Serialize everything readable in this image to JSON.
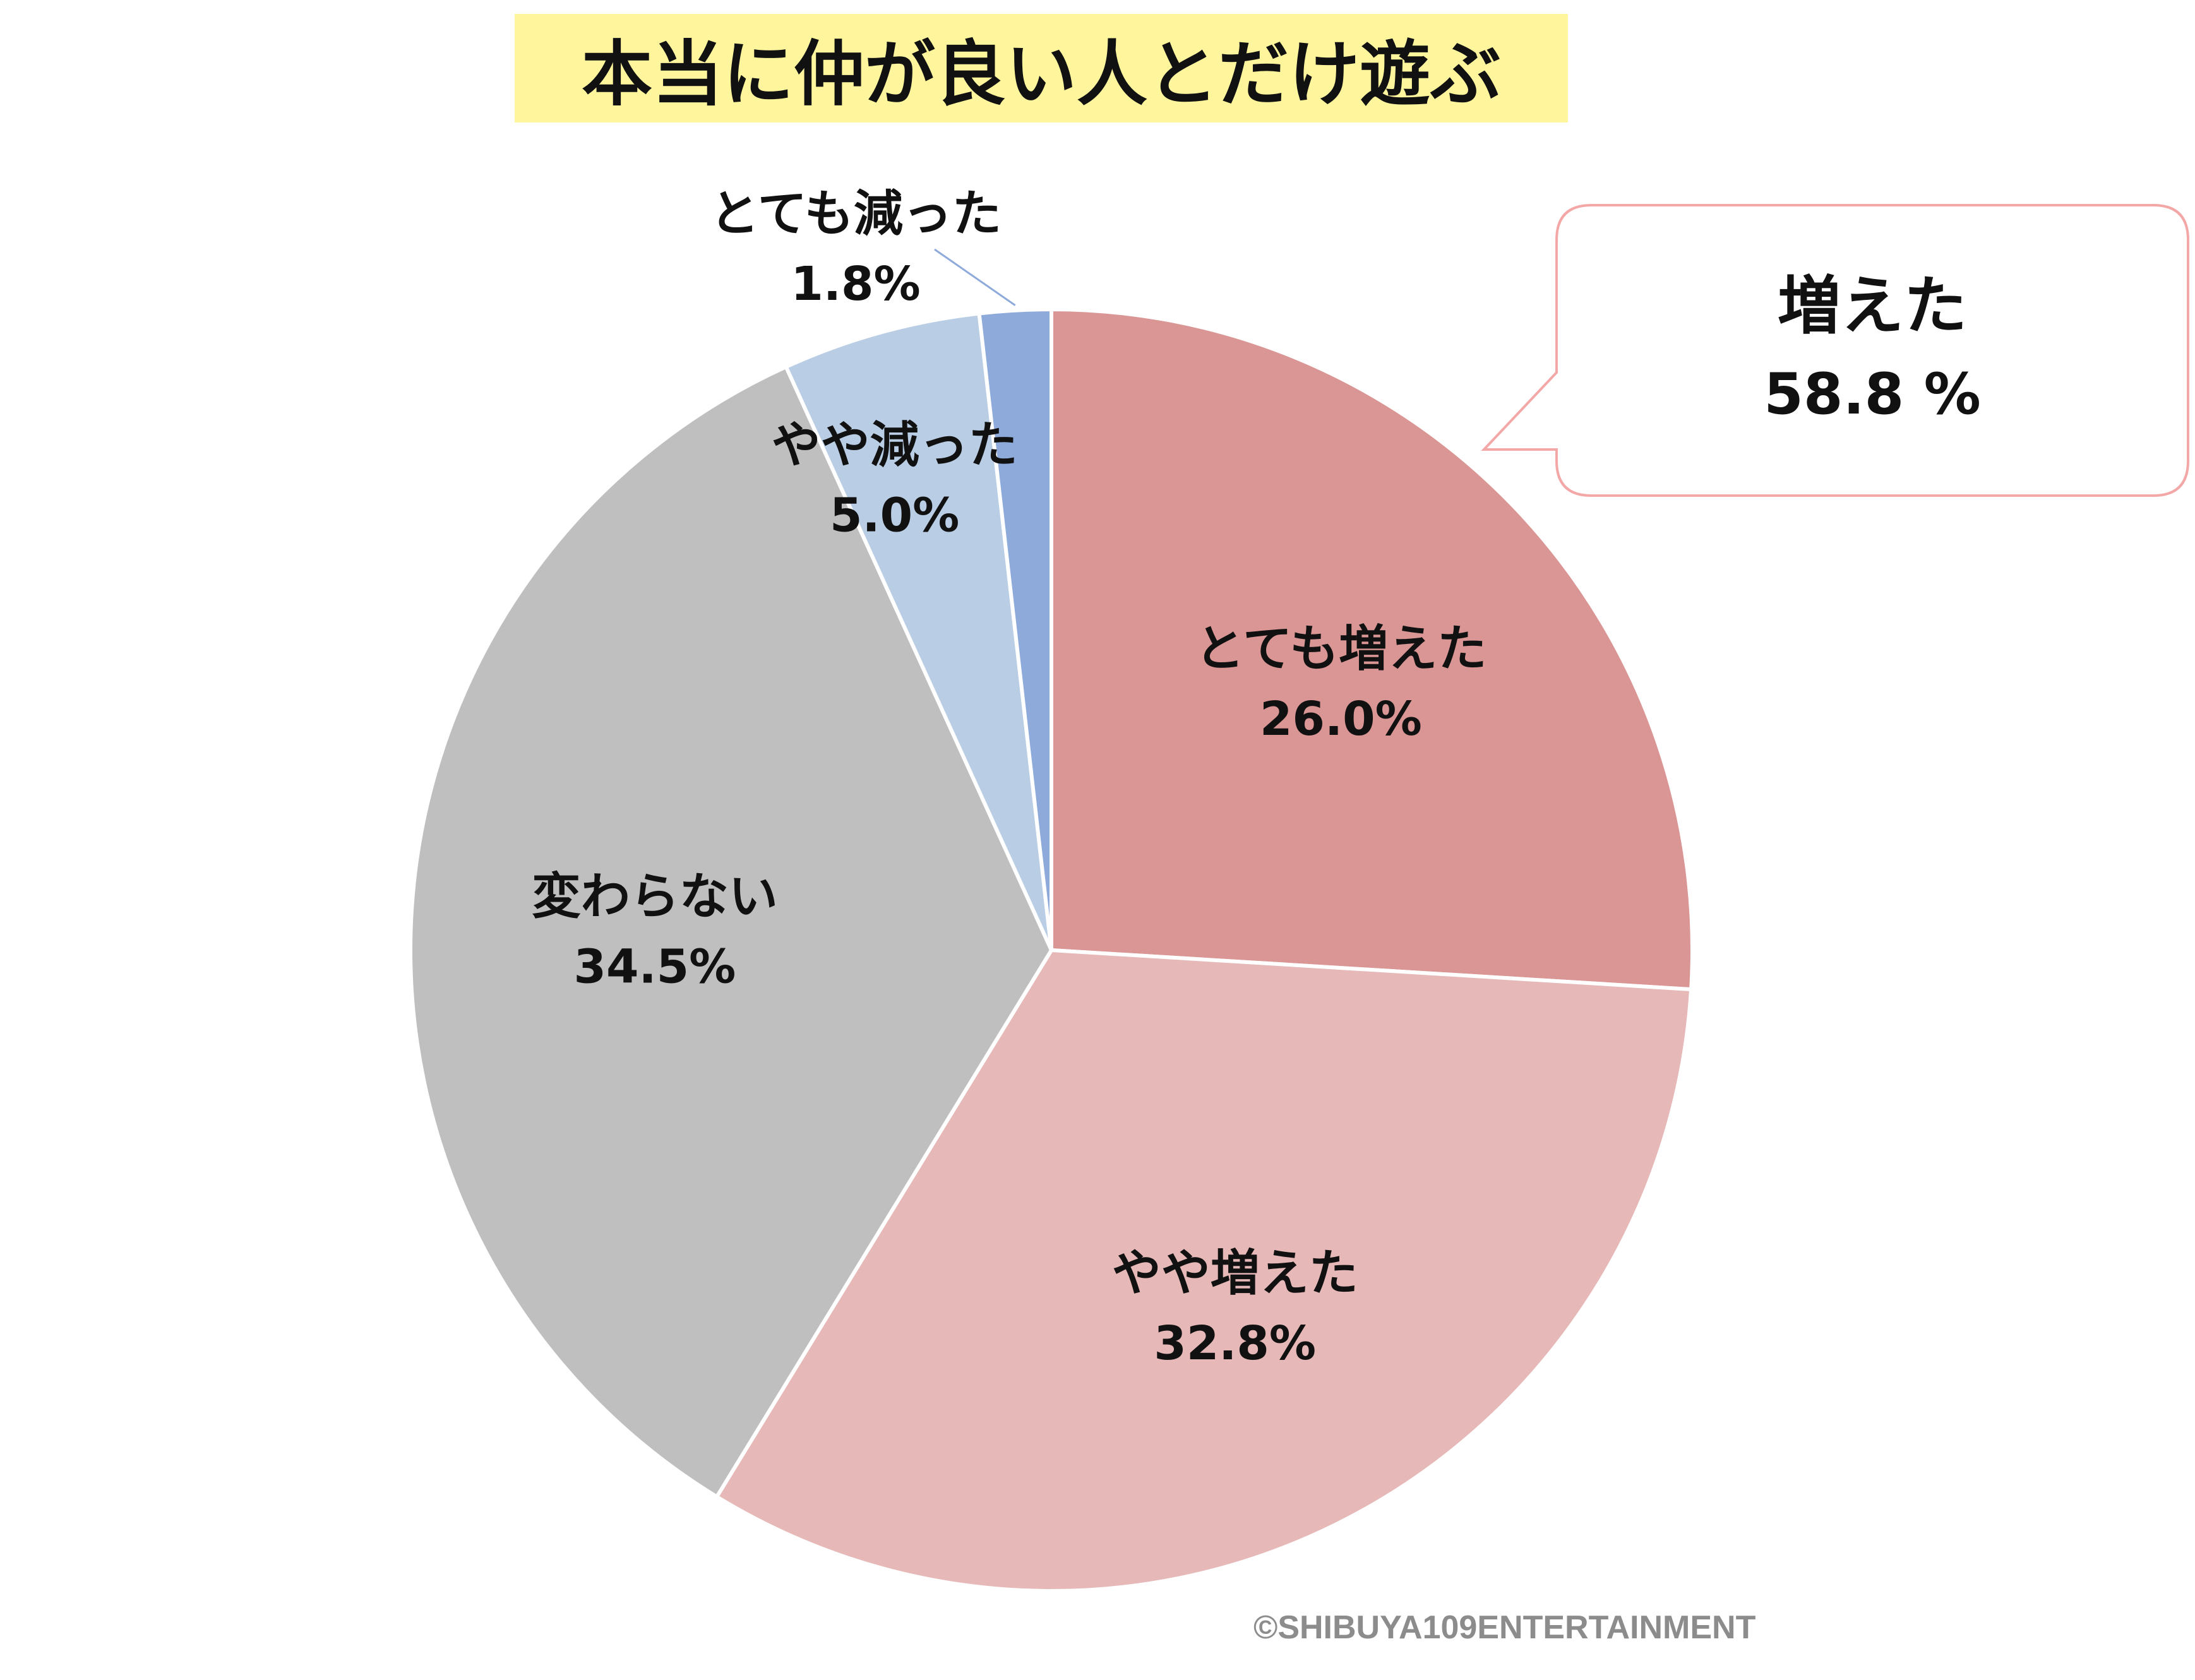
{
  "title": "本当に仲が良い人とだけ遊ぶ",
  "callout": {
    "label": "増えた",
    "value": "58.8 %"
  },
  "copyright": "©SHIBUYA109ENTERTAINMENT",
  "chart_data": {
    "type": "pie",
    "title": "本当に仲が良い人とだけ遊ぶ",
    "start": "12 o'clock, clockwise",
    "slices": [
      {
        "label": "とても増えた",
        "value": 26.0,
        "display": "26.0%",
        "color": "#d99694"
      },
      {
        "label": "やや増えた",
        "value": 32.8,
        "display": "32.8%",
        "color": "#e6b8b7"
      },
      {
        "label": "変わらない",
        "value": 34.5,
        "display": "34.5%",
        "color": "#bfbfbf"
      },
      {
        "label": "やや減った",
        "value": 5.0,
        "display": "5.0%",
        "color": "#b9cde5"
      },
      {
        "label": "とても減った",
        "value": 1.8,
        "display": "1.8%",
        "color": "#8eaadb"
      }
    ],
    "callout_group": {
      "label": "増えた",
      "value": "58.8 %",
      "border_color": "#f4a7a7"
    }
  }
}
